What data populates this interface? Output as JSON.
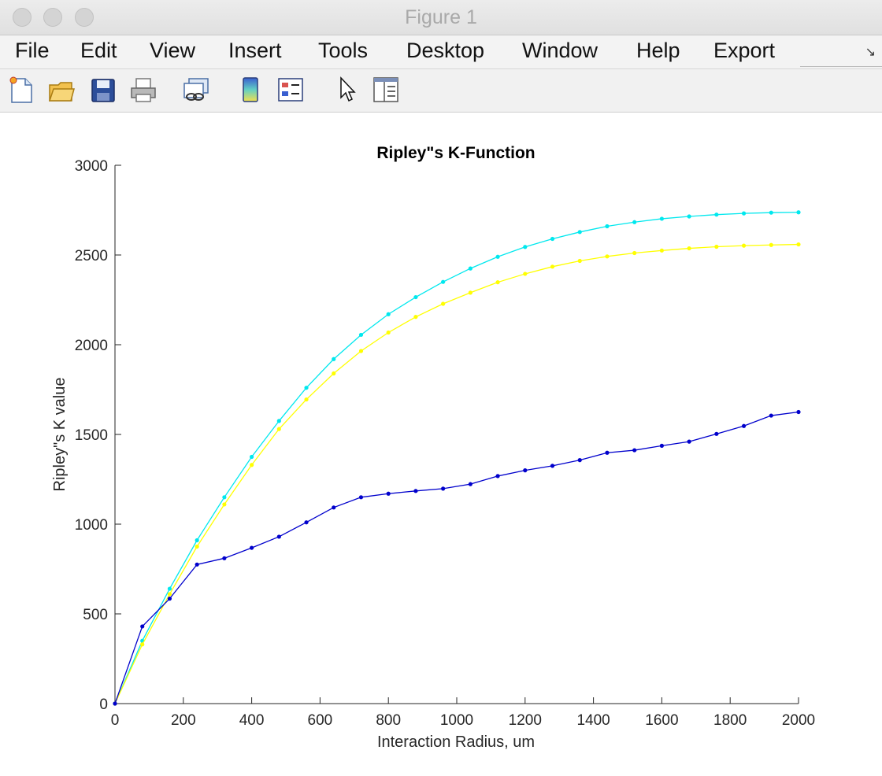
{
  "window": {
    "title": "Figure 1"
  },
  "menu": [
    "File",
    "Edit",
    "View",
    "Insert",
    "Tools",
    "Desktop",
    "Window",
    "Help",
    "Export"
  ],
  "toolbar": {
    "icons": [
      "new-figure-icon",
      "open-file-icon",
      "save-icon",
      "print-icon",
      "link-plot-icon",
      "colorbar-icon",
      "legend-icon",
      "pointer-icon",
      "property-editor-icon"
    ]
  },
  "chart_data": {
    "type": "line",
    "title": "Ripley\"s K-Function",
    "xlabel": "Interaction Radius, um",
    "ylabel": "Ripley\"s K value",
    "xlim": [
      0,
      2000
    ],
    "ylim": [
      0,
      3000
    ],
    "xticks": [
      "0",
      "200",
      "400",
      "600",
      "800",
      "1000",
      "1200",
      "1400",
      "1600",
      "1800",
      "2000"
    ],
    "yticks": [
      "0",
      "500",
      "1000",
      "1500",
      "2000",
      "2500",
      "3000"
    ],
    "grid": false,
    "x": [
      0,
      80,
      160,
      240,
      320,
      400,
      480,
      560,
      640,
      720,
      800,
      880,
      960,
      1040,
      1120,
      1200,
      1280,
      1360,
      1440,
      1520,
      1600,
      1680,
      1760,
      1840,
      1920,
      2000
    ],
    "series": [
      {
        "color": "#00e8ee",
        "values": [
          0,
          350,
          640,
          910,
          1150,
          1375,
          1575,
          1760,
          1920,
          2055,
          2170,
          2265,
          2350,
          2425,
          2490,
          2545,
          2590,
          2628,
          2660,
          2683,
          2702,
          2715,
          2725,
          2732,
          2736,
          2738
        ]
      },
      {
        "color": "#ffff00",
        "values": [
          0,
          330,
          610,
          875,
          1110,
          1330,
          1530,
          1695,
          1840,
          1965,
          2068,
          2155,
          2228,
          2290,
          2348,
          2395,
          2435,
          2467,
          2492,
          2511,
          2525,
          2537,
          2546,
          2552,
          2556,
          2559
        ]
      },
      {
        "color": "#0000cc",
        "values": [
          0,
          430,
          585,
          775,
          810,
          868,
          930,
          1010,
          1093,
          1150,
          1170,
          1185,
          1198,
          1223,
          1268,
          1300,
          1325,
          1357,
          1398,
          1412,
          1437,
          1460,
          1503,
          1547,
          1605,
          1625
        ]
      }
    ]
  }
}
